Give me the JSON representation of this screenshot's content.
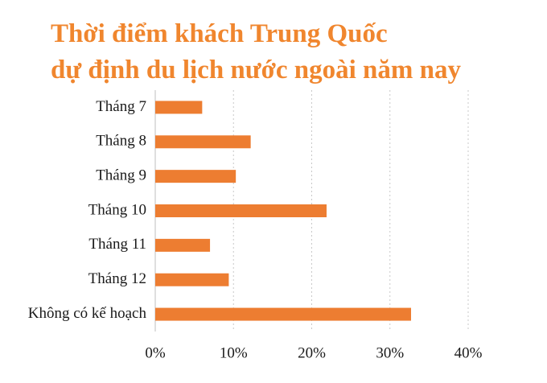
{
  "chart_data": {
    "type": "hbar",
    "title": [
      "Thời điểm khách Trung Quốc",
      "dự định du lịch nước ngoài năm nay"
    ],
    "categories": [
      "Tháng 7",
      "Tháng 8",
      "Tháng 9",
      "Tháng 10",
      "Tháng 11",
      "Tháng 12",
      "Không có kế hoạch"
    ],
    "values": [
      6,
      12.2,
      10.3,
      21.9,
      7,
      9.4,
      32.7
    ],
    "color": "#ed7d31",
    "xlim": [
      0,
      40
    ],
    "xticks": [
      {
        "value": 0,
        "label": "0%"
      },
      {
        "value": 10,
        "label": "10%"
      },
      {
        "value": 20,
        "label": "20%"
      },
      {
        "value": 30,
        "label": "30%"
      },
      {
        "value": 40,
        "label": "40%"
      }
    ],
    "grid": true
  }
}
